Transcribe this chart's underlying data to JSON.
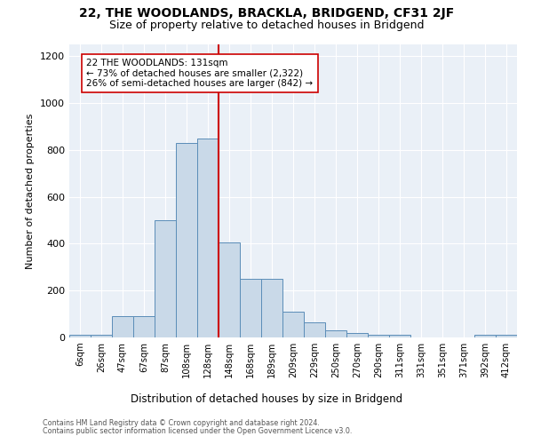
{
  "title": "22, THE WOODLANDS, BRACKLA, BRIDGEND, CF31 2JF",
  "subtitle": "Size of property relative to detached houses in Bridgend",
  "xlabel": "Distribution of detached houses by size in Bridgend",
  "ylabel": "Number of detached properties",
  "categories": [
    "6sqm",
    "26sqm",
    "47sqm",
    "67sqm",
    "87sqm",
    "108sqm",
    "128sqm",
    "148sqm",
    "168sqm",
    "189sqm",
    "209sqm",
    "229sqm",
    "250sqm",
    "270sqm",
    "290sqm",
    "311sqm",
    "331sqm",
    "351sqm",
    "371sqm",
    "392sqm",
    "412sqm"
  ],
  "values": [
    10,
    10,
    90,
    90,
    500,
    830,
    850,
    405,
    250,
    250,
    110,
    65,
    30,
    20,
    12,
    12,
    0,
    0,
    0,
    12,
    10
  ],
  "bar_color": "#c9d9e8",
  "bar_edge_color": "#5b8db8",
  "vline_x_index": 6,
  "vline_color": "#cc0000",
  "annotation_text": "22 THE WOODLANDS: 131sqm\n← 73% of detached houses are smaller (2,322)\n26% of semi-detached houses are larger (842) →",
  "annotation_box_color": "#ffffff",
  "annotation_box_edge": "#cc0000",
  "ylim": [
    0,
    1250
  ],
  "yticks": [
    0,
    200,
    400,
    600,
    800,
    1000,
    1200
  ],
  "footer1": "Contains HM Land Registry data © Crown copyright and database right 2024.",
  "footer2": "Contains public sector information licensed under the Open Government Licence v3.0.",
  "bg_color": "#eaf0f7",
  "title_fontsize": 10,
  "subtitle_fontsize": 9
}
